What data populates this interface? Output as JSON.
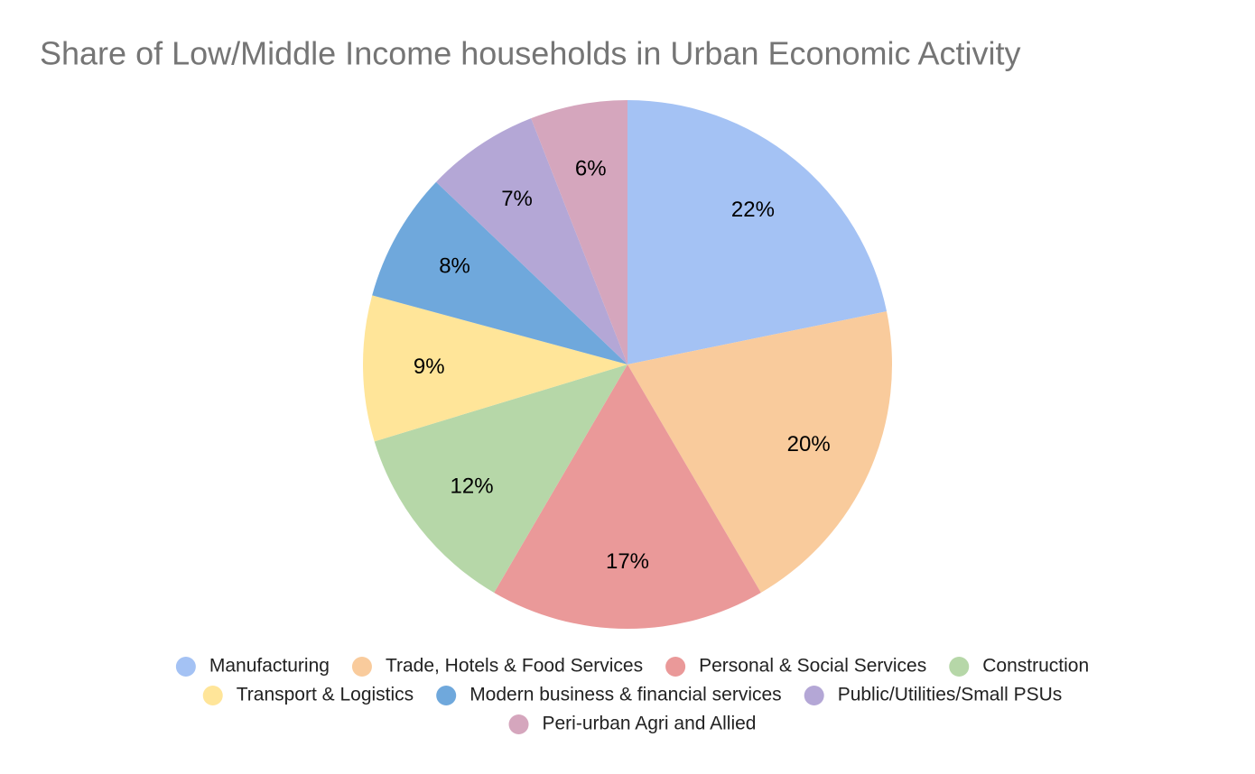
{
  "chart_data": {
    "type": "pie",
    "title": "Share of Low/Middle Income households in Urban Economic Activity",
    "categories": [
      "Manufacturing",
      "Trade, Hotels & Food Services",
      "Personal & Social Services",
      "Construction",
      "Transport & Logistics",
      "Modern business & financial services",
      "Public/Utilities/Small PSUs",
      "Peri-urban Agri and Allied"
    ],
    "values": [
      22,
      20,
      17,
      12,
      9,
      8,
      7,
      6
    ],
    "value_labels": [
      "22%",
      "20%",
      "17%",
      "12%",
      "9%",
      "8%",
      "7%",
      "6%"
    ],
    "colors": [
      "#a4c2f4",
      "#f9cb9c",
      "#ea9999",
      "#b6d7a8",
      "#ffe599",
      "#6fa8dc",
      "#b4a7d6",
      "#d5a6bd"
    ],
    "legend": "bottom"
  }
}
